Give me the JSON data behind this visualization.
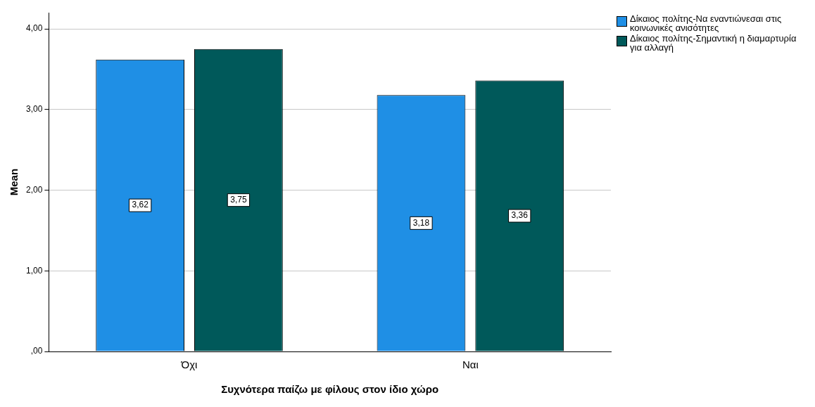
{
  "chart_data": {
    "type": "bar",
    "xlabel": "Συχνότερα παίζω με φίλους στον ίδιο χώρο",
    "ylabel": "Mean",
    "categories": [
      "Όχι",
      "Ναι"
    ],
    "series": [
      {
        "name": "Δίκαιος πολίτης-Να εναντιώνεσαι στις κοινωνικές ανισότητες",
        "color": "#1f8fe5",
        "values": [
          3.62,
          3.18
        ],
        "value_labels": [
          "3,62",
          "3,18"
        ]
      },
      {
        "name": "Δίκαιος πολίτης-Σημαντική η διαμαρτυρία για αλλαγή",
        "color": "#00595a",
        "values": [
          3.75,
          3.36
        ],
        "value_labels": [
          "3,75",
          "3,36"
        ]
      }
    ],
    "ylim": [
      0,
      4.2
    ],
    "yticks": [
      {
        "value": 0,
        "label": ",00"
      },
      {
        "value": 1,
        "label": "1,00"
      },
      {
        "value": 2,
        "label": "2,00"
      },
      {
        "value": 3,
        "label": "3,00"
      },
      {
        "value": 4,
        "label": "4,00"
      }
    ],
    "grid": "y",
    "legend": "top right"
  }
}
